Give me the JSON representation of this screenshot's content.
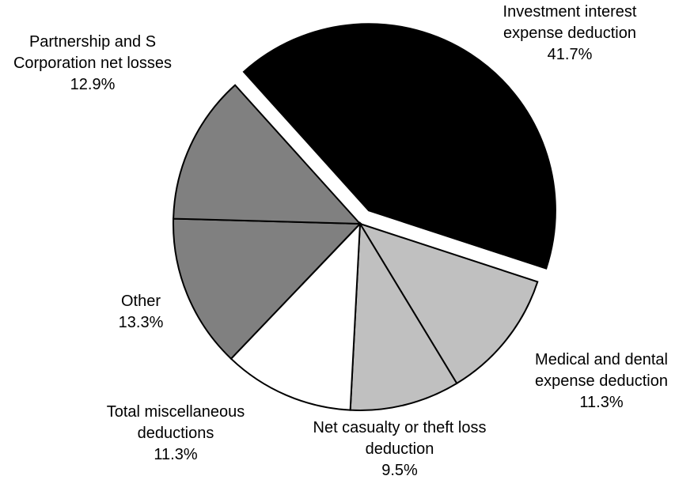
{
  "chart_data": {
    "type": "pie",
    "categories": [
      "Investment interest expense deduction",
      "Medical and dental expense deduction",
      "Net casualty or theft loss deduction",
      "Total miscellaneous deductions",
      "Other",
      "Partnership and S Corporation net losses"
    ],
    "values": [
      41.7,
      11.3,
      9.5,
      11.3,
      13.3,
      12.9
    ],
    "value_labels": [
      "41.7%",
      "11.3%",
      "9.5%",
      "11.3%",
      "13.3%",
      "12.9%"
    ],
    "colors": [
      "#000000",
      "#c0c0c0",
      "#c0c0c0",
      "#ffffff",
      "#808080",
      "#808080"
    ],
    "exploded": [
      true,
      false,
      false,
      false,
      false,
      false
    ]
  }
}
